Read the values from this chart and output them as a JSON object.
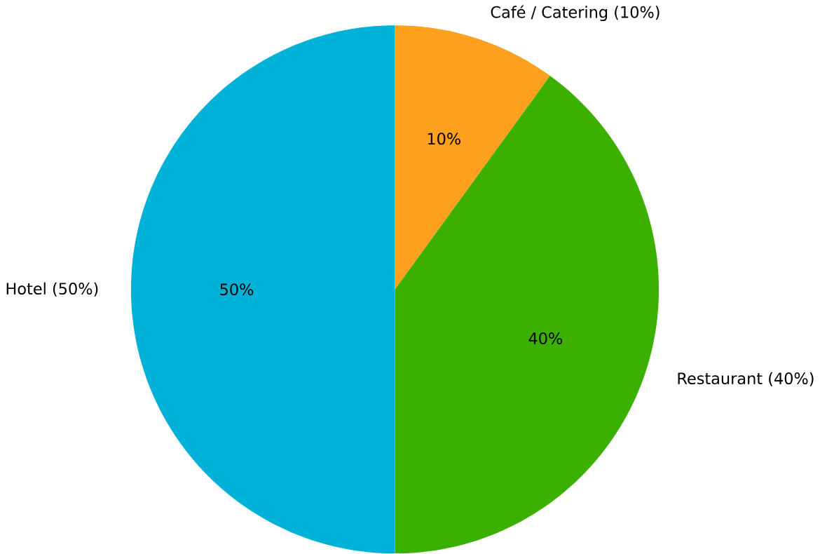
{
  "chart_data": {
    "type": "pie",
    "categories": [
      "Café / Catering (10%)",
      "Restaurant (40%)",
      "Hotel (50%)"
    ],
    "values": [
      10,
      40,
      50
    ],
    "colors": [
      "#ffa11f",
      "#3cb001",
      "#00b2d7"
    ],
    "value_labels": [
      "10%",
      "40%",
      "50%"
    ]
  }
}
